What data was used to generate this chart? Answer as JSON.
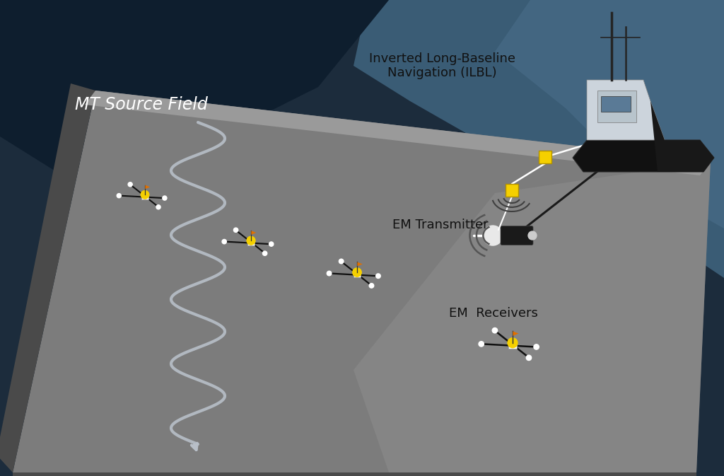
{
  "bg_dark": "#1c2c3c",
  "bg_water_top_right": "#3d5f78",
  "bg_water_light": "#5a7a95",
  "seafloor_top": "#7d7d7d",
  "seafloor_top_light": "#8a8a8a",
  "seafloor_front": "#5a5a5a",
  "seafloor_right": "#606060",
  "cliff_face": "#4a4a4a",
  "seafloor_highlight": "#909090",
  "mt_wave_color": "#b8bfc8",
  "mt_wave_lw": 3.0,
  "tow_cable_color": "#202020",
  "label_color": "#111111",
  "label_ilbl_color": "#111111",
  "white_text_color": "#ffffff",
  "title_text": "MT Source Field",
  "title_fontsize": 17,
  "label_ilbl": "Inverted Long-Baseline\nNavigation (ILBL)",
  "label_transmitter": "EM Transmitter",
  "label_receivers": "EM  Receivers",
  "label_fontsize": 13,
  "yellow_color": "#f5d000",
  "orange_flag_color": "#e07000",
  "ship_hull_color": "#111111",
  "ship_super_color": "#ccd4dc",
  "ship_window_color": "#5a7a96",
  "transmitter_body_color": "#1a1a1a",
  "transmitter_sphere_color": "#e8e8e8",
  "wave_arc_color": "#555555"
}
